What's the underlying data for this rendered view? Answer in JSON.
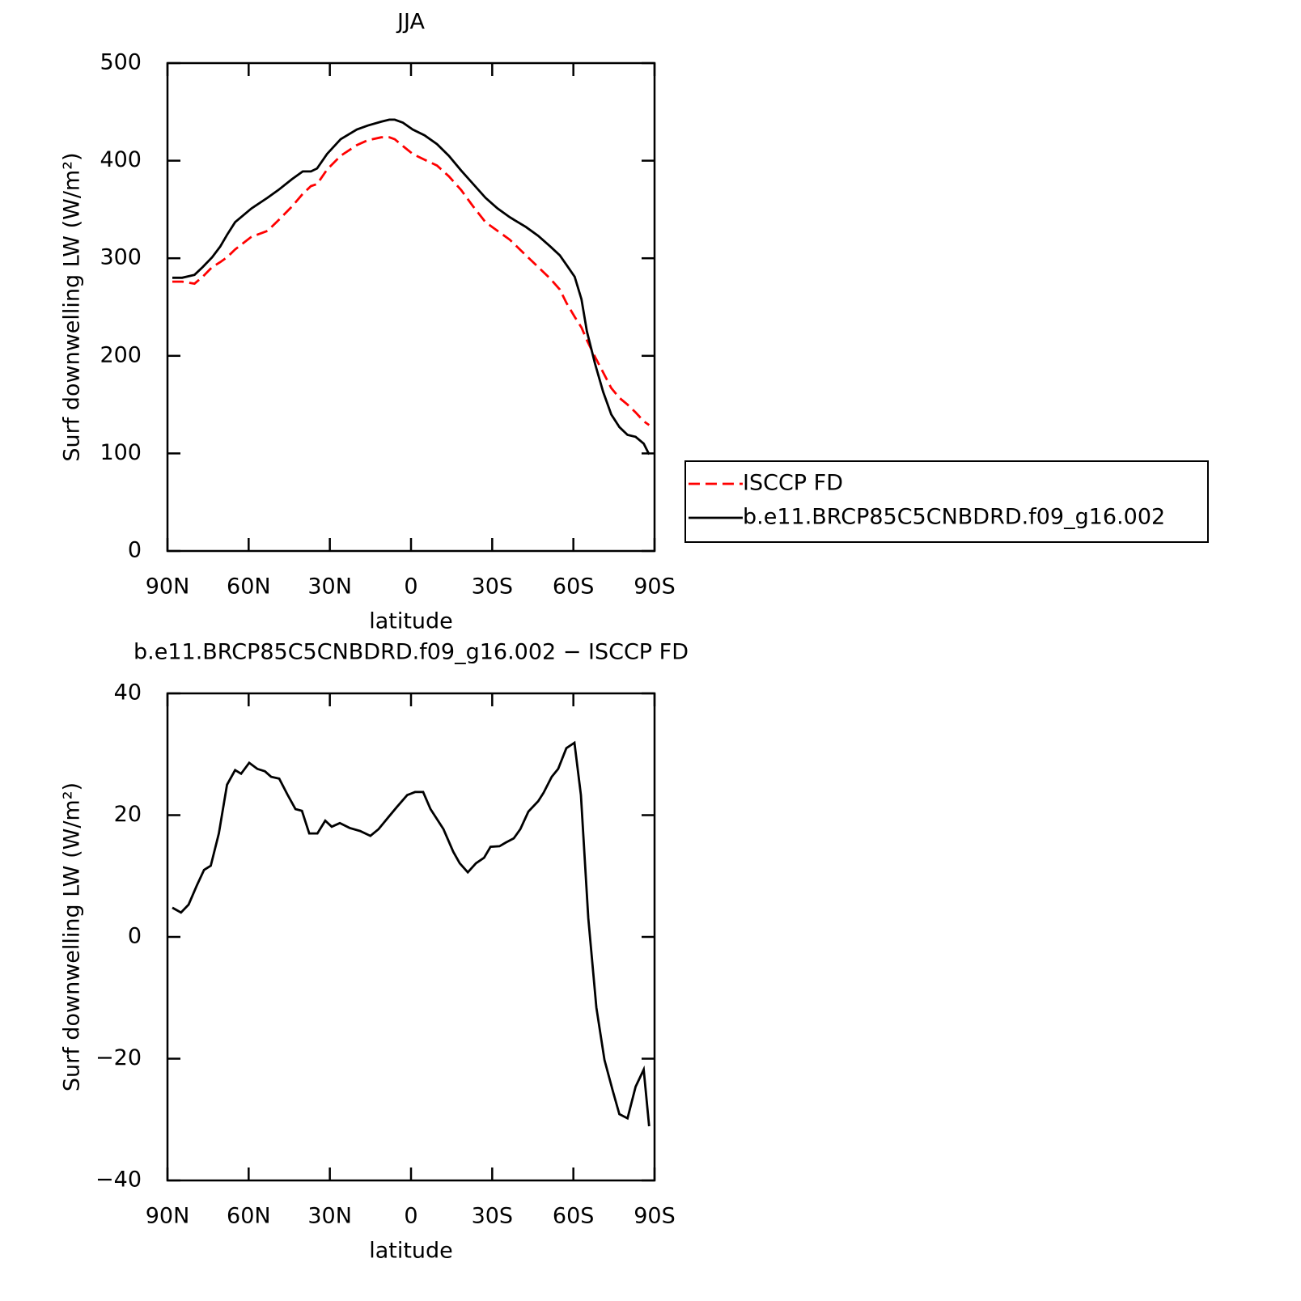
{
  "chart_data": [
    {
      "type": "line",
      "title": "JJA",
      "xlabel": "latitude",
      "ylabel": "Surf downwelling LW (W/m²)",
      "x": [
        88.2,
        84.6,
        80,
        77,
        73.5,
        70.5,
        68,
        65,
        59,
        53,
        49,
        44,
        40,
        37,
        34.7,
        31,
        26,
        20,
        16,
        11,
        8,
        6,
        3,
        -0.6,
        -5,
        -9.6,
        -14,
        -18.5,
        -23,
        -27.5,
        -32,
        -36.5,
        -42.5,
        -47,
        -51.5,
        -55,
        -57.5,
        -60.5,
        -63,
        -65,
        -68,
        -71,
        -74,
        -77,
        -80,
        -83,
        -86,
        -88
      ],
      "series": [
        {
          "name": "ISCCP FD",
          "color": "#ff0000",
          "dashed": true,
          "values": [
            276,
            276,
            274,
            281,
            291,
            296,
            301,
            309,
            322,
            328,
            339,
            353,
            366,
            374,
            376,
            391,
            405,
            416,
            421,
            424,
            424,
            422,
            415,
            407,
            401,
            395,
            384,
            370,
            353,
            337,
            328,
            319,
            303,
            291,
            279,
            268,
            254,
            240,
            229,
            216,
            199,
            183,
            167,
            157,
            150,
            142,
            133,
            129
          ]
        },
        {
          "name": "b.e11.BRCP85C5CNBDRD.f09_g16.002",
          "color": "#000000",
          "dashed": false,
          "values": [
            280,
            280,
            283,
            291,
            301,
            312,
            324,
            337,
            351,
            362,
            370,
            381,
            389,
            389,
            392,
            407,
            422,
            432,
            436,
            440,
            442,
            442,
            439,
            432,
            426,
            417,
            405,
            390,
            376,
            362,
            351,
            342,
            332,
            323,
            312,
            303,
            293,
            281,
            258,
            225,
            192,
            163,
            140,
            127,
            119,
            117,
            110,
            99
          ]
        }
      ],
      "xlim": [
        90,
        -90
      ],
      "xticks": [
        {
          "value": 90,
          "label": "90N"
        },
        {
          "value": 60,
          "label": "60N"
        },
        {
          "value": 30,
          "label": "30N"
        },
        0,
        {
          "value": -30,
          "label": "30S"
        },
        {
          "value": -60,
          "label": "60S"
        },
        {
          "value": -90,
          "label": "90S"
        }
      ],
      "ylim": [
        0,
        500
      ],
      "yticks": [
        0,
        100,
        200,
        300,
        400,
        500
      ],
      "legend": "right"
    },
    {
      "type": "line",
      "title": "b.e11.BRCP85C5CNBDRD.f09_g16.002 − ISCCP FD",
      "xlabel": "latitude",
      "ylabel": "Surf downwelling LW (W/m²)",
      "x": [
        88.2,
        85,
        82.2,
        79.2,
        76.5,
        74,
        71,
        68,
        65,
        62.8,
        59.8,
        56.8,
        54,
        51.7,
        48.7,
        45.7,
        42.7,
        40.3,
        37.6,
        34.6,
        31.7,
        29.3,
        26.3,
        22.7,
        18.8,
        15,
        12,
        8.3,
        5.3,
        1.4,
        -1.5,
        -4.5,
        -7.2,
        -12,
        -15.6,
        -18,
        -21,
        -24,
        -27,
        -29.4,
        -32.7,
        -35,
        -38,
        -40.4,
        -43.4,
        -47,
        -49,
        -52,
        -54.4,
        -57.4,
        -60.4,
        -62.8,
        -65.5,
        -68.5,
        -71.5,
        -74.5,
        -77,
        -80,
        -83,
        -86,
        -88
      ],
      "values": [
        4.8,
        4.0,
        5.3,
        8.4,
        11.0,
        11.7,
        17,
        25,
        27.4,
        26.8,
        28.6,
        27.6,
        27.2,
        26.3,
        26.0,
        23.4,
        21,
        20.7,
        17,
        17.0,
        19.1,
        18.1,
        18.7,
        17.9,
        17.4,
        16.6,
        17.7,
        19.7,
        21.3,
        23.3,
        23.8,
        23.8,
        21,
        17.7,
        14.0,
        12.1,
        10.6,
        12.1,
        13.0,
        14.8,
        14.9,
        15.5,
        16.2,
        17.7,
        20.6,
        22.3,
        23.7,
        26.3,
        27.6,
        31,
        31.9,
        23.3,
        3.1,
        -11.6,
        -20.2,
        -25.2,
        -29.1,
        -29.8,
        -24.6,
        -21.8,
        -31.1
      ],
      "color": "#000000",
      "xlim": [
        90,
        -90
      ],
      "xticks": [
        {
          "value": 90,
          "label": "90N"
        },
        {
          "value": 60,
          "label": "60N"
        },
        {
          "value": 30,
          "label": "30N"
        },
        0,
        {
          "value": -30,
          "label": "30S"
        },
        {
          "value": -60,
          "label": "60S"
        },
        {
          "value": -90,
          "label": "90S"
        }
      ],
      "ylim": [
        -40,
        40
      ],
      "yticks": [
        {
          "value": -40,
          "label": "−40"
        },
        {
          "value": -20,
          "label": "−20"
        },
        0,
        20,
        40
      ]
    }
  ]
}
